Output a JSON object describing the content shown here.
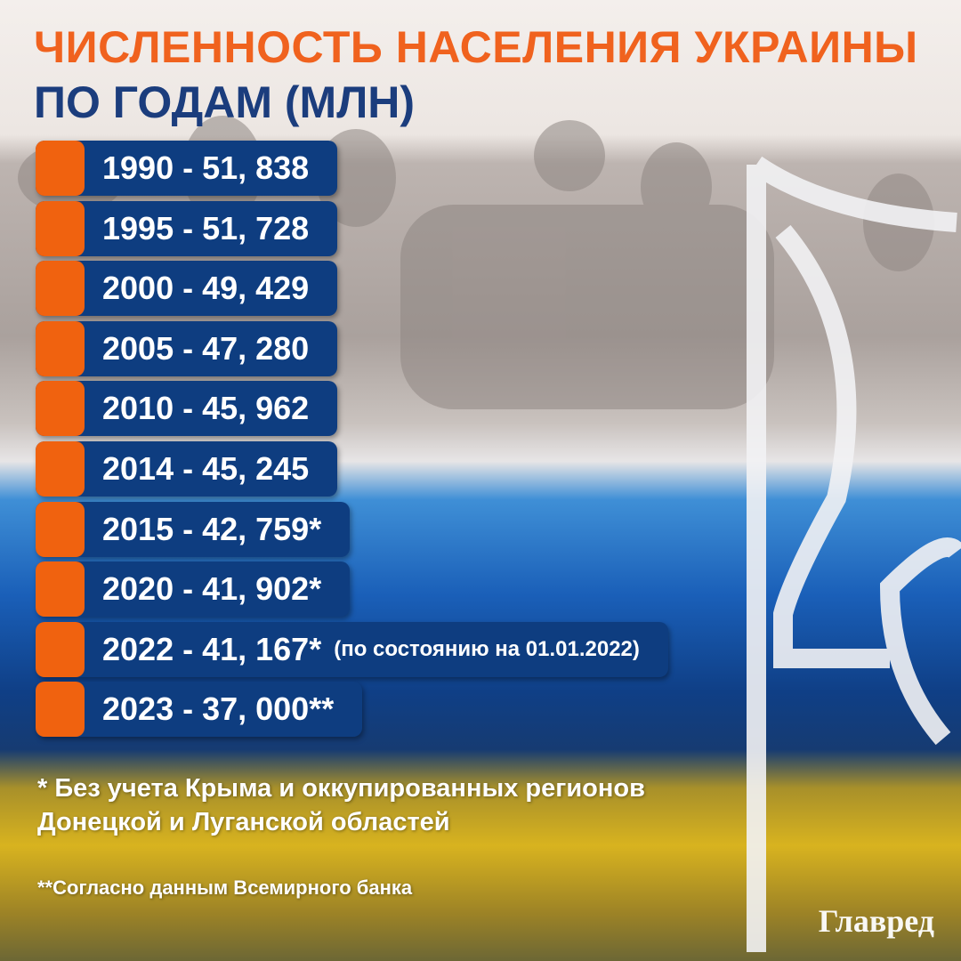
{
  "header": {
    "title_line1": "ЧИСЛЕННОСТЬ НАСЕЛЕНИЯ УКРАИНЫ",
    "title_line2": "ПО ГОДАМ (МЛН)"
  },
  "items": [
    {
      "text": "1990 - 51, 838"
    },
    {
      "text": "1995 - 51, 728"
    },
    {
      "text": "2000 - 49, 429"
    },
    {
      "text": "2005 - 47, 280"
    },
    {
      "text": "2010 - 45, 962"
    },
    {
      "text": "2014 - 45, 245"
    },
    {
      "text": "2015 - 42, 759*"
    },
    {
      "text": "2020 - 41, 902*"
    },
    {
      "text": "2022 - 41, 167*",
      "note": "(по состоянию на 01.01.2022)"
    },
    {
      "text": "2023 - 37, 000**"
    }
  ],
  "footnotes": {
    "first_line1": "* Без учета Крыма и оккупированных регионов",
    "first_line2": "Донецкой и Луганской областей",
    "second": "**Согласно данным Всемирного банка"
  },
  "logo": "Главред"
}
